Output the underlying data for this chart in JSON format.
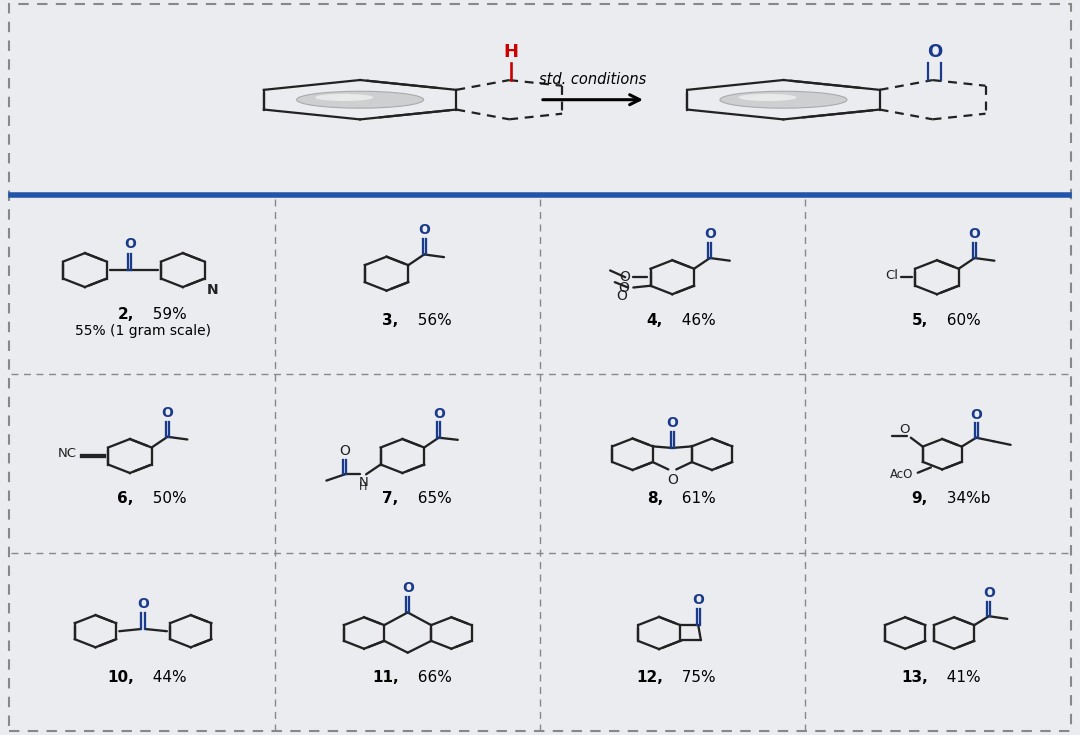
{
  "background_color": "#eaecf0",
  "blue_line_color": "#2255aa",
  "oxygen_color": "#1a3a8a",
  "red_color": "#cc0000",
  "bond_color": "#222222",
  "compounds": [
    {
      "id": "2",
      "yield": "59%",
      "extra": "55% (1 gram scale)",
      "row": 0,
      "col": 0
    },
    {
      "id": "3",
      "yield": "56%",
      "extra": "",
      "row": 0,
      "col": 1
    },
    {
      "id": "4",
      "yield": "46%",
      "extra": "",
      "row": 0,
      "col": 2
    },
    {
      "id": "5",
      "yield": "60%",
      "extra": "",
      "row": 0,
      "col": 3
    },
    {
      "id": "6",
      "yield": "50%",
      "extra": "",
      "row": 1,
      "col": 0
    },
    {
      "id": "7",
      "yield": "65%",
      "extra": "",
      "row": 1,
      "col": 1
    },
    {
      "id": "8",
      "yield": "61%",
      "extra": "",
      "row": 1,
      "col": 2
    },
    {
      "id": "9",
      "yield": "34%b",
      "extra": "",
      "row": 1,
      "col": 3
    },
    {
      "id": "10",
      "yield": "44%",
      "extra": "",
      "row": 2,
      "col": 0
    },
    {
      "id": "11",
      "yield": "66%",
      "extra": "",
      "row": 2,
      "col": 1
    },
    {
      "id": "12",
      "yield": "75%",
      "extra": "",
      "row": 2,
      "col": 2
    },
    {
      "id": "13",
      "yield": "41%",
      "extra": "",
      "row": 2,
      "col": 3
    }
  ]
}
